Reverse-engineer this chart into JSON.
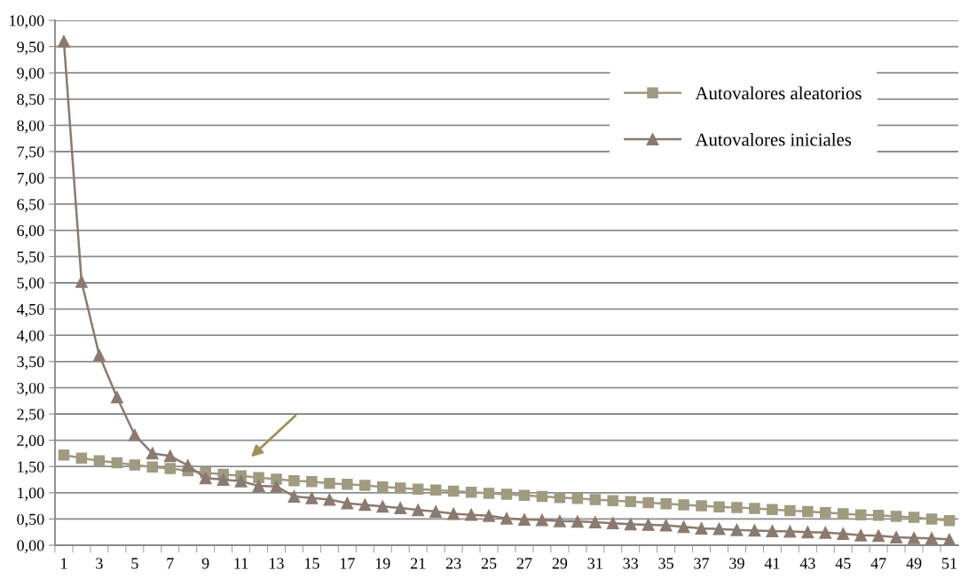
{
  "chart_data": {
    "type": "line",
    "categories": [
      "1",
      null,
      "3",
      null,
      "5",
      null,
      "7",
      null,
      "9",
      null,
      "11",
      null,
      "13",
      null,
      "15",
      null,
      "17",
      null,
      "19",
      null,
      "21",
      null,
      "23",
      null,
      "25",
      null,
      "27",
      null,
      "29",
      null,
      "31",
      null,
      "33",
      null,
      "35",
      null,
      "37",
      null,
      "39",
      null,
      "41",
      null,
      "43",
      null,
      "45",
      null,
      "47",
      null,
      "49",
      null,
      "51"
    ],
    "series": [
      {
        "name": "Autovalores aleatorios",
        "color": "#a09a80",
        "marker": "square",
        "values": [
          1.72,
          1.66,
          1.61,
          1.57,
          1.53,
          1.49,
          1.46,
          1.42,
          1.38,
          1.35,
          1.32,
          1.29,
          1.26,
          1.23,
          1.21,
          1.18,
          1.16,
          1.14,
          1.11,
          1.09,
          1.07,
          1.05,
          1.03,
          1.01,
          0.99,
          0.97,
          0.95,
          0.93,
          0.91,
          0.89,
          0.87,
          0.85,
          0.83,
          0.81,
          0.79,
          0.77,
          0.75,
          0.73,
          0.72,
          0.7,
          0.68,
          0.66,
          0.64,
          0.62,
          0.6,
          0.58,
          0.57,
          0.55,
          0.53,
          0.5,
          0.47
        ]
      },
      {
        "name": "Autovalores iniciales",
        "color": "#8a7a70",
        "marker": "triangle",
        "values": [
          9.6,
          5.02,
          3.62,
          2.82,
          2.1,
          1.75,
          1.7,
          1.52,
          1.28,
          1.25,
          1.22,
          1.13,
          1.12,
          0.93,
          0.9,
          0.87,
          0.8,
          0.77,
          0.74,
          0.71,
          0.67,
          0.64,
          0.6,
          0.58,
          0.56,
          0.51,
          0.49,
          0.48,
          0.46,
          0.45,
          0.44,
          0.42,
          0.4,
          0.39,
          0.38,
          0.35,
          0.32,
          0.31,
          0.29,
          0.28,
          0.27,
          0.26,
          0.25,
          0.24,
          0.22,
          0.19,
          0.18,
          0.15,
          0.14,
          0.13,
          0.11
        ]
      }
    ],
    "ylim": [
      0,
      10
    ],
    "yticks": [
      {
        "value": 0,
        "label": "0,00"
      },
      {
        "value": 0.5,
        "label": "0,50"
      },
      {
        "value": 1,
        "label": "1,00"
      },
      {
        "value": 1.5,
        "label": "1,50"
      },
      {
        "value": 2,
        "label": "2,00"
      },
      {
        "value": 2.5,
        "label": "2,50"
      },
      {
        "value": 3,
        "label": "3,00"
      },
      {
        "value": 3.5,
        "label": "3,50"
      },
      {
        "value": 4,
        "label": "4,00"
      },
      {
        "value": 4.5,
        "label": "4,50"
      },
      {
        "value": 5,
        "label": "5,00"
      },
      {
        "value": 5.5,
        "label": "5,50"
      },
      {
        "value": 6,
        "label": "6,00"
      },
      {
        "value": 6.5,
        "label": "6,50"
      },
      {
        "value": 7,
        "label": "7,00"
      },
      {
        "value": 7.5,
        "label": "7,50"
      },
      {
        "value": 8,
        "label": "8,00"
      },
      {
        "value": 8.5,
        "label": "8,50"
      },
      {
        "value": 9,
        "label": "9,00"
      },
      {
        "value": 9.5,
        "label": "9,50"
      },
      {
        "value": 10,
        "label": "10,00"
      }
    ],
    "grid": "y",
    "legend": "top right",
    "line_style": "solid"
  }
}
